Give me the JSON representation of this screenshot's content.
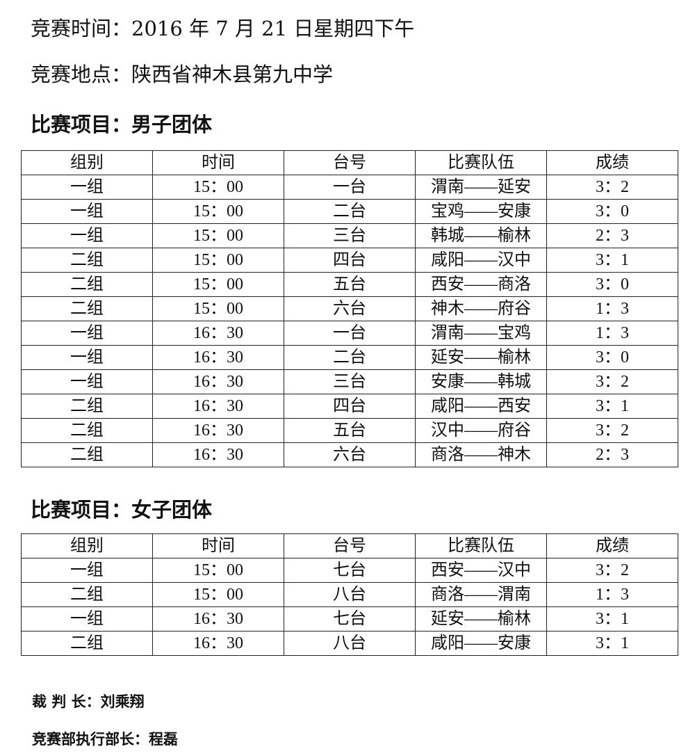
{
  "header": {
    "time_line": "竞赛时间：2016 年 7 月 21 日星期四下午",
    "venue_line": "竞赛地点：陕西省神木县第九中学"
  },
  "columns": [
    "组别",
    "时间",
    "台号",
    "比赛队伍",
    "成绩"
  ],
  "men": {
    "title": "比赛项目：男子团体",
    "rows": [
      [
        "一组",
        "15：00",
        "一台",
        "渭南——延安",
        "3：2"
      ],
      [
        "一组",
        "15：00",
        "二台",
        "宝鸡——安康",
        "3：0"
      ],
      [
        "一组",
        "15：00",
        "三台",
        "韩城——榆林",
        "2：3"
      ],
      [
        "二组",
        "15：00",
        "四台",
        "咸阳——汉中",
        "3：1"
      ],
      [
        "二组",
        "15：00",
        "五台",
        "西安——商洛",
        "3：0"
      ],
      [
        "二组",
        "15：00",
        "六台",
        "神木——府谷",
        "1：3"
      ],
      [
        "一组",
        "16：30",
        "一台",
        "渭南——宝鸡",
        "1：3"
      ],
      [
        "一组",
        "16：30",
        "二台",
        "延安——榆林",
        "3：0"
      ],
      [
        "一组",
        "16：30",
        "三台",
        "安康——韩城",
        "3：2"
      ],
      [
        "二组",
        "16：30",
        "四台",
        "咸阳——西安",
        "3：1"
      ],
      [
        "二组",
        "16：30",
        "五台",
        "汉中——府谷",
        "3：2"
      ],
      [
        "二组",
        "16：30",
        "六台",
        "商洛——神木",
        "2：3"
      ]
    ]
  },
  "women": {
    "title": "比赛项目：女子团体",
    "rows": [
      [
        "一组",
        "15：00",
        "七台",
        "西安——汉中",
        "3：2"
      ],
      [
        "二组",
        "15：00",
        "八台",
        "商洛——渭南",
        "1：3"
      ],
      [
        "一组",
        "16：30",
        "七台",
        "延安——榆林",
        "3：1"
      ],
      [
        "二组",
        "16：30",
        "八台",
        "咸阳——安康",
        "3：1"
      ]
    ]
  },
  "footer": {
    "referee": "裁 判 长：刘乘翔",
    "director": "竞赛部执行部长：程磊"
  }
}
